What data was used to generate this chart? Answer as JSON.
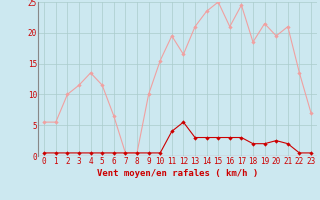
{
  "x": [
    0,
    1,
    2,
    3,
    4,
    5,
    6,
    7,
    8,
    9,
    10,
    11,
    12,
    13,
    14,
    15,
    16,
    17,
    18,
    19,
    20,
    21,
    22,
    23
  ],
  "rafales": [
    5.5,
    5.5,
    10.0,
    11.5,
    13.5,
    11.5,
    6.5,
    0.5,
    0.5,
    10.0,
    15.5,
    19.5,
    16.5,
    21.0,
    23.5,
    25.0,
    21.0,
    24.5,
    18.5,
    21.5,
    19.5,
    21.0,
    13.5,
    7.0
  ],
  "moyen": [
    0.5,
    0.5,
    0.5,
    0.5,
    0.5,
    0.5,
    0.5,
    0.5,
    0.5,
    0.5,
    0.5,
    4.0,
    5.5,
    3.0,
    3.0,
    3.0,
    3.0,
    3.0,
    2.0,
    2.0,
    2.5,
    2.0,
    0.5,
    0.5
  ],
  "bg_color": "#cce8f0",
  "line_color_rafales": "#f0a0a0",
  "line_color_moyen": "#cc0000",
  "marker_color_rafales": "#f0a0a0",
  "marker_color_moyen": "#cc0000",
  "grid_color": "#aacccc",
  "xlabel": "Vent moyen/en rafales ( km/h )",
  "ylim": [
    0,
    25
  ],
  "xlim": [
    -0.5,
    23.5
  ],
  "yticks": [
    0,
    5,
    10,
    15,
    20,
    25
  ],
  "xticks": [
    0,
    1,
    2,
    3,
    4,
    5,
    6,
    7,
    8,
    9,
    10,
    11,
    12,
    13,
    14,
    15,
    16,
    17,
    18,
    19,
    20,
    21,
    22,
    23
  ],
  "tick_fontsize": 5.5,
  "xlabel_fontsize": 6.5
}
